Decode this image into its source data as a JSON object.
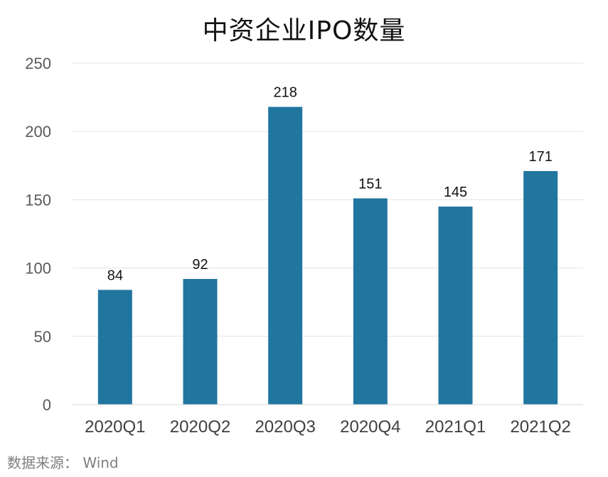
{
  "chart_data": {
    "type": "bar",
    "title": "中资企业IPO数量",
    "categories": [
      "2020Q1",
      "2020Q2",
      "2020Q3",
      "2020Q4",
      "2021Q1",
      "2021Q2"
    ],
    "values": [
      84,
      92,
      218,
      151,
      145,
      171
    ],
    "ylim": [
      0,
      250
    ],
    "yticks": [
      0,
      50,
      100,
      150,
      200,
      250
    ],
    "grid": true,
    "legend": "none",
    "xlabel": "",
    "ylabel": "",
    "bar_color": "#2176a0",
    "source": "数据来源： Wind"
  }
}
